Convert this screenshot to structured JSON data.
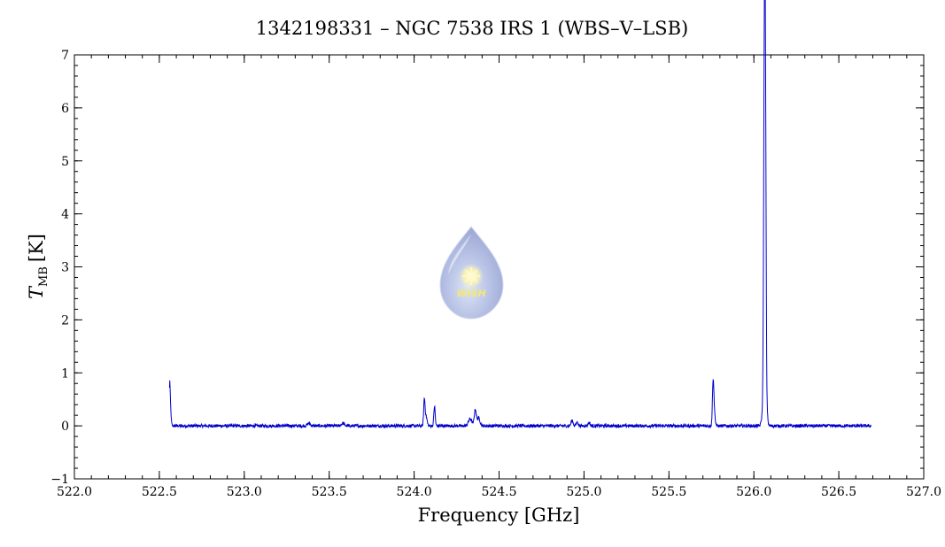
{
  "chart_data": {
    "type": "line",
    "title": "1342198331 – NGC 7538 IRS 1 (WBS–V–LSB)",
    "xlabel": "Frequency [GHz]",
    "ylabel_main": "T",
    "ylabel_sub": "MB",
    "ylabel_unit": "[K]",
    "xlim": [
      522.0,
      527.0
    ],
    "ylim": [
      -1,
      7
    ],
    "x_ticks": [
      522.0,
      522.5,
      523.0,
      523.5,
      524.0,
      524.5,
      525.0,
      525.5,
      526.0,
      526.5,
      527.0
    ],
    "x_tick_labels": [
      "522.0",
      "522.5",
      "523.0",
      "523.5",
      "524.0",
      "524.5",
      "525.0",
      "525.5",
      "526.0",
      "526.5",
      "527.0"
    ],
    "y_ticks": [
      -1,
      0,
      1,
      2,
      3,
      4,
      5,
      6,
      7
    ],
    "y_tick_labels": [
      "−1",
      "0",
      "1",
      "2",
      "3",
      "4",
      "5",
      "6",
      "7"
    ],
    "grid": false,
    "line_color": "#0000cc",
    "spectrum_range": [
      522.56,
      526.69
    ],
    "series": [
      {
        "peaks": [
          {
            "x": 522.56,
            "y": 0.72,
            "w": 0.003
          },
          {
            "x": 522.565,
            "y": 0.35,
            "w": 0.004
          },
          {
            "x": 523.38,
            "y": 0.05,
            "w": 0.008
          },
          {
            "x": 523.58,
            "y": 0.05,
            "w": 0.008
          },
          {
            "x": 524.06,
            "y": 0.48,
            "w": 0.004
          },
          {
            "x": 524.07,
            "y": 0.18,
            "w": 0.006
          },
          {
            "x": 524.12,
            "y": 0.37,
            "w": 0.004
          },
          {
            "x": 524.33,
            "y": 0.13,
            "w": 0.01
          },
          {
            "x": 524.36,
            "y": 0.3,
            "w": 0.006
          },
          {
            "x": 524.38,
            "y": 0.15,
            "w": 0.008
          },
          {
            "x": 524.93,
            "y": 0.1,
            "w": 0.006
          },
          {
            "x": 524.96,
            "y": 0.07,
            "w": 0.006
          },
          {
            "x": 525.03,
            "y": 0.06,
            "w": 0.006
          },
          {
            "x": 525.76,
            "y": 0.68,
            "w": 0.004
          },
          {
            "x": 525.765,
            "y": 0.3,
            "w": 0.006
          },
          {
            "x": 526.05,
            "y": 0.2,
            "w": 0.006
          },
          {
            "x": 526.055,
            "y": 0.85,
            "w": 0.003
          },
          {
            "x": 526.06,
            "y": 4.8,
            "w": 0.003
          },
          {
            "x": 526.065,
            "y": 6.75,
            "w": 0.003
          },
          {
            "x": 526.07,
            "y": 3.9,
            "w": 0.003
          },
          {
            "x": 526.075,
            "y": 0.45,
            "w": 0.005
          }
        ],
        "noise_amplitude": 0.03
      }
    ]
  },
  "logo": {
    "text": "WISH"
  }
}
